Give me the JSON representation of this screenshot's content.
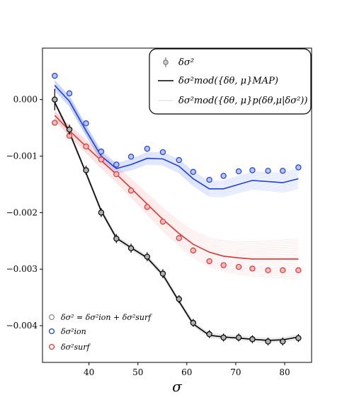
{
  "chart_data": {
    "type": "line",
    "xlabel": "σ",
    "ylabel": "",
    "xlim": [
      30.5,
      85.5
    ],
    "ylim": [
      -0.00465,
      0.00091
    ],
    "x_ticks": [
      40,
      50,
      60,
      70,
      80
    ],
    "x_tick_labels": [
      "40",
      "50",
      "60",
      "70",
      "80"
    ],
    "y_ticks": [
      0.0,
      -0.001,
      -0.002,
      -0.003,
      -0.004
    ],
    "y_tick_labels": [
      "0.000",
      "−0.001",
      "−0.002",
      "−0.003",
      "−0.004"
    ],
    "grid": false,
    "legend_top": {
      "placement": "top-right",
      "entries": [
        {
          "label": "δσ²",
          "style": "errorbar-marker"
        },
        {
          "label": "δσ²mod({δθ, μ}MAP)",
          "style": "solid-line"
        },
        {
          "label": "δσ²mod({δθ, μ}p(δθ,μ|δσ²))",
          "style": "faint-line"
        }
      ]
    },
    "legend_bottom": {
      "placement": "bottom-left",
      "entries": [
        {
          "label": "δσ² = δσ²ion + δσ²surf",
          "color": "#8c8c8c"
        },
        {
          "label": "δσ²ion",
          "color": "#1f3fd6"
        },
        {
          "label": "δσ²surf",
          "color": "#d63a3a"
        }
      ]
    },
    "colors": {
      "total": "#000000",
      "ion": "#1f3fd6",
      "surf": "#d63a3a",
      "total_fill": "#8c8c8c",
      "ion_band": "#6f8fff",
      "surf_band": "#ff8f8f"
    },
    "series": [
      {
        "name": "δσ²",
        "x": [
          33,
          36,
          39.4,
          42.5,
          45.6,
          48.6,
          51.9,
          55.1,
          58.4,
          61.3,
          64.6,
          67.5,
          70.6,
          73.4,
          76.6,
          79.6,
          82.8
        ],
        "y": [
          -0.0,
          -0.00053,
          -0.00125,
          -0.002,
          -0.00246,
          -0.00263,
          -0.00278,
          -0.00308,
          -0.00353,
          -0.00395,
          -0.00415,
          -0.00421,
          -0.00421,
          -0.00424,
          -0.00428,
          -0.00428,
          -0.00422
        ],
        "yerr": [
          0.00019,
          9e-05,
          8e-05,
          8e-05,
          8e-05,
          8e-05,
          8e-05,
          8e-05,
          7e-05,
          7e-05,
          7e-05,
          7e-05,
          7e-05,
          7e-05,
          7e-05,
          7e-05,
          7e-05
        ]
      },
      {
        "name": "δσ²ion",
        "x": [
          33,
          36,
          39.4,
          42.5,
          45.6,
          48.6,
          51.9,
          55.1,
          58.4,
          61.3,
          64.6,
          67.5,
          70.6,
          73.4,
          76.6,
          79.6,
          82.8
        ],
        "y": [
          0.00042,
          0.00011,
          -0.00042,
          -0.00092,
          -0.00115,
          -0.00101,
          -0.00087,
          -0.00093,
          -0.00107,
          -0.00128,
          -0.00142,
          -0.00135,
          -0.00127,
          -0.00125,
          -0.00126,
          -0.00126,
          -0.0012
        ]
      },
      {
        "name": "δσ²surf",
        "x": [
          33,
          36,
          39.4,
          42.5,
          45.6,
          48.6,
          51.9,
          55.1,
          58.4,
          61.3,
          64.6,
          67.5,
          70.6,
          73.4,
          76.6,
          79.6,
          82.8
        ],
        "y": [
          -0.00041,
          -0.00064,
          -0.00083,
          -0.00106,
          -0.00132,
          -0.00161,
          -0.0019,
          -0.00216,
          -0.00245,
          -0.00267,
          -0.00286,
          -0.00293,
          -0.00296,
          -0.00299,
          -0.00302,
          -0.00302,
          -0.00302
        ]
      },
      {
        "name": "δσ²mod({δθ, μ}MAP) total",
        "x": [
          33,
          36,
          39.4,
          42.5,
          45.6,
          48.6,
          51.9,
          55.1,
          58.4,
          61.3,
          64.6,
          67.5,
          70.6,
          73.4,
          76.6,
          79.6,
          82.8
        ],
        "y": [
          -5e-05,
          -0.00058,
          -0.0013,
          -0.00197,
          -0.00245,
          -0.00262,
          -0.0028,
          -0.0031,
          -0.00357,
          -0.00397,
          -0.00417,
          -0.0042,
          -0.00422,
          -0.00424,
          -0.00426,
          -0.00425,
          -0.0042
        ]
      },
      {
        "name": "δσ²mod({δθ, μ}MAP) ion",
        "x": [
          33,
          36,
          39.4,
          42.5,
          45.6,
          48.6,
          51.9,
          55.1,
          58.4,
          61.3,
          64.6,
          67.5,
          70.6,
          73.4,
          76.6,
          79.6,
          82.8
        ],
        "y": [
          0.00025,
          -3e-05,
          -0.00055,
          -0.001,
          -0.00122,
          -0.00115,
          -0.00104,
          -0.00105,
          -0.00118,
          -0.0014,
          -0.00158,
          -0.00158,
          -0.0015,
          -0.00143,
          -0.00145,
          -0.00147,
          -0.0014
        ]
      },
      {
        "name": "δσ²mod({δθ, μ}MAP) surf",
        "x": [
          33,
          36,
          39.4,
          42.5,
          45.6,
          48.6,
          51.9,
          55.1,
          58.4,
          61.3,
          64.6,
          67.5,
          70.6,
          73.4,
          76.6,
          79.6,
          82.8
        ],
        "y": [
          -0.00028,
          -0.00055,
          -0.00083,
          -0.00108,
          -0.00132,
          -0.00157,
          -0.00185,
          -0.00212,
          -0.00237,
          -0.00256,
          -0.0027,
          -0.00277,
          -0.0028,
          -0.00282,
          -0.00282,
          -0.00282,
          -0.00282
        ]
      }
    ]
  }
}
